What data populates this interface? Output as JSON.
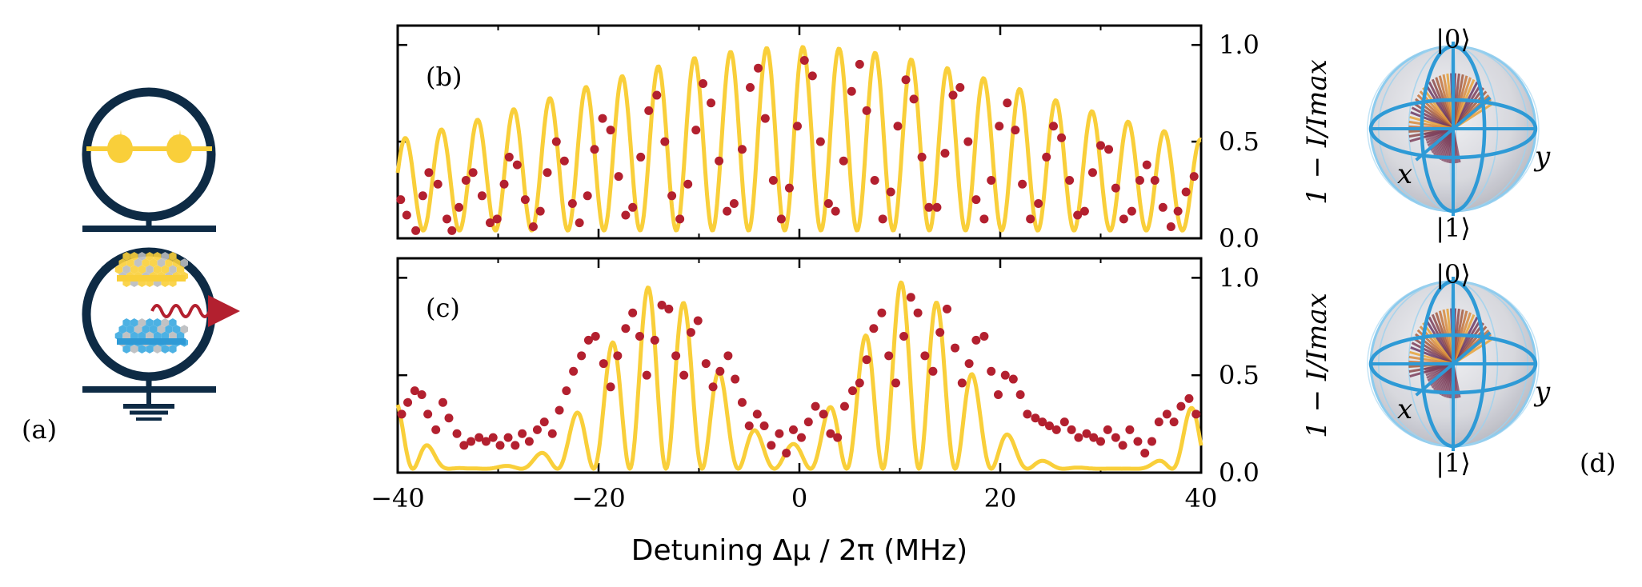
{
  "panel_labels": {
    "a": "(a)",
    "b": "(b)",
    "c": "(c)",
    "d": "(d)"
  },
  "colors": {
    "fit": "#f9cf3a",
    "data": "#b3202f",
    "navy": "#0e2b45",
    "sphere_blue": "#2e9ad6",
    "pastel_blue": "#3aa8e0"
  },
  "icons": [
    "transmon-qubit-icon",
    "mechanical-resonator-icon",
    "emitted-phonon-arrow-icon",
    "ground-symbol-icon",
    "bloch-sphere-icon"
  ],
  "bloch": {
    "top_label": "|0⟩",
    "bottom_label": "|1⟩",
    "x_label": "x",
    "y_label": "y"
  },
  "chart_data": [
    {
      "id": "b",
      "type": "line",
      "xlabel": "Detuning Δμ / 2π (MHz)",
      "ylabel": "1 − I/Imax",
      "xlim": [
        -40,
        40
      ],
      "ylim": [
        0,
        1.1
      ],
      "xticks": [
        "−40",
        "−20",
        "0",
        "20",
        "40"
      ],
      "yticks": [
        "0.0",
        "0.5",
        "1.0"
      ],
      "grid": false,
      "series": [
        {
          "role": "fit",
          "kind": "line",
          "model": {
            "period": 3.6,
            "phase": -0.6,
            "min_base": 0.04,
            "envelope_center": 0,
            "envelope_width": 34,
            "envelope_power": 2,
            "amp_max": 0.99,
            "amp_edge": 0.35
          }
        },
        {
          "role": "data",
          "kind": "scatter",
          "x": [
            -39.7,
            -39.1,
            -38.2,
            -37.5,
            -36.9,
            -36.0,
            -35.1,
            -34.6,
            -33.9,
            -33.2,
            -32.5,
            -31.6,
            -30.8,
            -30.1,
            -29.4,
            -28.9,
            -28.1,
            -27.3,
            -26.5,
            -25.8,
            -25.1,
            -24.2,
            -23.4,
            -22.6,
            -21.9,
            -21.1,
            -20.4,
            -19.6,
            -18.8,
            -18.0,
            -17.3,
            -16.6,
            -15.8,
            -15.0,
            -14.2,
            -13.4,
            -12.7,
            -11.9,
            -11.1,
            -10.3,
            -9.6,
            -8.8,
            -8.0,
            -7.2,
            -6.5,
            -5.7,
            -4.9,
            -4.1,
            -3.4,
            -2.6,
            -1.8,
            -1.0,
            -0.2,
            0.5,
            1.3,
            2.1,
            2.9,
            3.6,
            4.4,
            5.2,
            6.0,
            6.7,
            7.5,
            8.3,
            9.1,
            9.8,
            10.6,
            11.4,
            12.2,
            12.9,
            13.7,
            14.5,
            15.3,
            16.0,
            16.8,
            17.6,
            18.4,
            19.1,
            19.9,
            20.7,
            21.5,
            22.2,
            23.0,
            23.8,
            24.6,
            25.3,
            26.1,
            26.9,
            27.7,
            28.4,
            29.2,
            30.0,
            30.8,
            31.5,
            32.3,
            33.1,
            33.9,
            34.6,
            35.4,
            36.2,
            37.0,
            37.7,
            38.5,
            39.3
          ],
          "y": [
            0.2,
            0.12,
            0.04,
            0.22,
            0.34,
            0.28,
            0.1,
            0.04,
            0.16,
            0.3,
            0.34,
            0.22,
            0.08,
            0.1,
            0.28,
            0.42,
            0.38,
            0.2,
            0.06,
            0.14,
            0.34,
            0.5,
            0.4,
            0.18,
            0.08,
            0.22,
            0.46,
            0.62,
            0.56,
            0.32,
            0.12,
            0.16,
            0.42,
            0.66,
            0.74,
            0.5,
            0.22,
            0.1,
            0.28,
            0.56,
            0.8,
            0.7,
            0.4,
            0.14,
            0.18,
            0.46,
            0.78,
            0.88,
            0.62,
            0.3,
            0.1,
            0.26,
            0.58,
            0.92,
            0.84,
            0.5,
            0.18,
            0.14,
            0.4,
            0.76,
            0.9,
            0.66,
            0.3,
            0.1,
            0.24,
            0.58,
            0.82,
            0.72,
            0.42,
            0.16,
            0.16,
            0.44,
            0.74,
            0.78,
            0.5,
            0.2,
            0.1,
            0.3,
            0.58,
            0.7,
            0.56,
            0.28,
            0.1,
            0.18,
            0.42,
            0.58,
            0.52,
            0.3,
            0.12,
            0.14,
            0.34,
            0.48,
            0.46,
            0.26,
            0.1,
            0.14,
            0.3,
            0.38,
            0.3,
            0.16,
            0.06,
            0.14,
            0.24,
            0.32
          ]
        }
      ]
    },
    {
      "id": "c",
      "type": "line",
      "xlabel": "Detuning Δμ / 2π (MHz)",
      "ylabel": "1 − I/Imax",
      "xlim": [
        -40,
        40
      ],
      "ylim": [
        0,
        1.1
      ],
      "xticks": [
        "−40",
        "−20",
        "0",
        "20",
        "40"
      ],
      "yticks": [
        "0.0",
        "0.5",
        "1.0"
      ],
      "grid": false,
      "series": [
        {
          "role": "fit",
          "kind": "line",
          "model": {
            "period": 3.6,
            "phase": 1.2,
            "lobes": [
              {
                "center": -14,
                "width": 7.5,
                "amp": 0.95
              },
              {
                "center": 11,
                "width": 7.5,
                "amp": 0.97
              }
            ],
            "edge_amp": 0.35,
            "baseline": 0.05
          }
        },
        {
          "role": "data",
          "kind": "scatter",
          "x": [
            -39.6,
            -39.0,
            -38.3,
            -37.6,
            -37.0,
            -36.2,
            -35.5,
            -34.9,
            -34.1,
            -33.4,
            -32.7,
            -31.9,
            -31.2,
            -30.5,
            -29.8,
            -29.0,
            -28.3,
            -27.6,
            -26.9,
            -26.1,
            -25.4,
            -24.6,
            -23.9,
            -23.2,
            -22.5,
            -21.7,
            -21.0,
            -20.3,
            -19.5,
            -18.8,
            -18.1,
            -17.3,
            -16.6,
            -15.9,
            -15.2,
            -14.4,
            -13.7,
            -13.0,
            -12.3,
            -11.5,
            -10.8,
            -10.1,
            -9.3,
            -8.6,
            -7.9,
            -7.1,
            -6.4,
            -5.7,
            -5.0,
            -4.2,
            -3.5,
            -2.8,
            -2.0,
            -1.3,
            -0.6,
            0.2,
            0.9,
            1.6,
            2.4,
            3.1,
            3.8,
            4.5,
            5.3,
            6.0,
            6.7,
            7.4,
            8.2,
            8.9,
            9.6,
            10.4,
            11.1,
            11.8,
            12.5,
            13.3,
            14.0,
            14.7,
            15.5,
            16.2,
            16.9,
            17.6,
            18.4,
            19.1,
            19.8,
            20.5,
            21.3,
            22.0,
            22.7,
            23.5,
            24.2,
            24.9,
            25.6,
            26.4,
            27.1,
            27.8,
            28.6,
            29.3,
            30.0,
            30.7,
            31.5,
            32.2,
            32.9,
            33.7,
            34.4,
            35.1,
            35.8,
            36.6,
            37.3,
            38.0,
            38.8,
            39.5
          ],
          "y": [
            0.3,
            0.36,
            0.42,
            0.4,
            0.3,
            0.22,
            0.36,
            0.28,
            0.2,
            0.14,
            0.16,
            0.18,
            0.16,
            0.18,
            0.14,
            0.18,
            0.14,
            0.2,
            0.16,
            0.22,
            0.26,
            0.2,
            0.32,
            0.42,
            0.52,
            0.6,
            0.68,
            0.7,
            0.56,
            0.44,
            0.6,
            0.74,
            0.82,
            0.7,
            0.5,
            0.68,
            0.86,
            0.84,
            0.6,
            0.5,
            0.72,
            0.78,
            0.56,
            0.44,
            0.52,
            0.6,
            0.48,
            0.36,
            0.24,
            0.3,
            0.24,
            0.14,
            0.2,
            0.1,
            0.22,
            0.18,
            0.26,
            0.34,
            0.3,
            0.2,
            0.18,
            0.34,
            0.42,
            0.46,
            0.58,
            0.74,
            0.82,
            0.6,
            0.46,
            0.7,
            0.9,
            0.82,
            0.6,
            0.52,
            0.72,
            0.84,
            0.64,
            0.46,
            0.56,
            0.68,
            0.7,
            0.52,
            0.4,
            0.5,
            0.48,
            0.4,
            0.3,
            0.28,
            0.26,
            0.24,
            0.22,
            0.26,
            0.22,
            0.18,
            0.2,
            0.18,
            0.16,
            0.22,
            0.18,
            0.14,
            0.22,
            0.16,
            0.1,
            0.16,
            0.26,
            0.3,
            0.26,
            0.34,
            0.38,
            0.3
          ]
        }
      ]
    }
  ]
}
